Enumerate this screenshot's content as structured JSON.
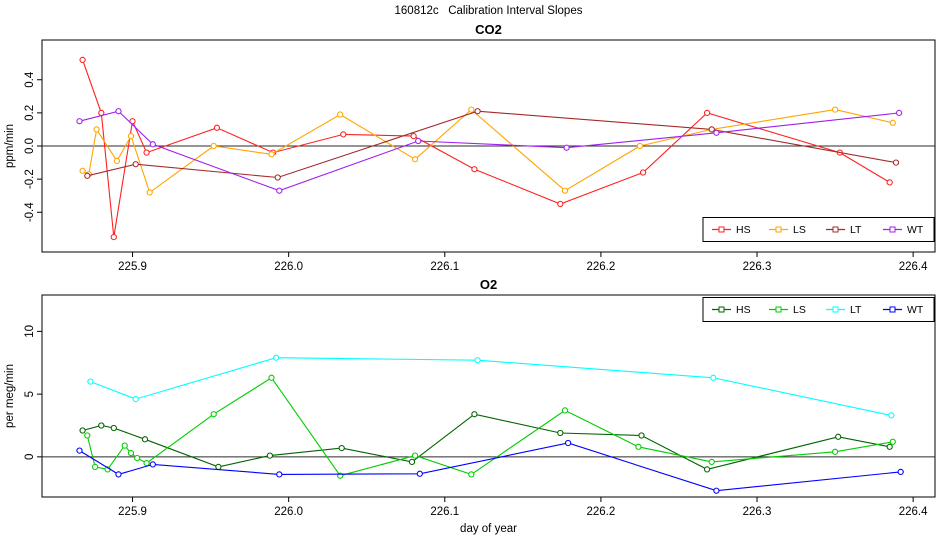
{
  "title": "160812c   Calibration Interval Slopes",
  "chart_data": [
    {
      "id": "co2",
      "type": "line",
      "title": "CO2",
      "ylabel": "ppm/min",
      "xlabel": "",
      "xlim": [
        225.842,
        226.414
      ],
      "ylim": [
        -0.64,
        0.64
      ],
      "xticks": [
        225.9,
        226.0,
        226.1,
        226.2,
        226.3,
        226.4
      ],
      "xtick_labels": [
        "225.9",
        "226.0",
        "226.1",
        "226.2",
        "226.3",
        "226.4"
      ],
      "yticks": [
        -0.4,
        -0.2,
        0.0,
        0.2,
        0.4
      ],
      "ytick_labels": [
        "-0.4",
        "-0.2",
        "0.0",
        "0.2",
        "0.4"
      ],
      "zero_line": true,
      "grid": false,
      "marker": "open-circle",
      "legend_position": "bottom-right",
      "series": [
        {
          "name": "HS",
          "color": "#ff2020",
          "x": [
            225.868,
            225.88,
            225.888,
            225.9,
            225.909,
            225.954,
            225.99,
            226.035,
            226.08,
            226.119,
            226.174,
            226.227,
            226.268,
            226.353,
            226.385
          ],
          "y": [
            0.52,
            0.2,
            -0.55,
            0.15,
            -0.04,
            0.11,
            -0.04,
            0.07,
            0.06,
            -0.14,
            -0.35,
            -0.16,
            0.2,
            -0.04,
            -0.22
          ]
        },
        {
          "name": "LS",
          "color": "#ffa500",
          "x": [
            225.868,
            225.872,
            225.877,
            225.89,
            225.899,
            225.911,
            225.952,
            225.989,
            226.033,
            226.081,
            226.117,
            226.177,
            226.225,
            226.271,
            226.35,
            226.387
          ],
          "y": [
            -0.15,
            -0.17,
            0.1,
            -0.09,
            0.06,
            -0.28,
            0.0,
            -0.05,
            0.19,
            -0.08,
            0.22,
            -0.27,
            0.0,
            0.1,
            0.22,
            0.14
          ]
        },
        {
          "name": "LT",
          "color": "#a52a2a",
          "x": [
            225.871,
            225.902,
            225.993,
            226.121,
            226.271,
            226.389
          ],
          "y": [
            -0.18,
            -0.11,
            -0.19,
            0.21,
            0.1,
            -0.1
          ]
        },
        {
          "name": "WT",
          "color": "#a020f0",
          "x": [
            225.866,
            225.891,
            225.913,
            225.994,
            226.083,
            226.178,
            226.274,
            226.391
          ],
          "y": [
            0.15,
            0.21,
            0.01,
            -0.27,
            0.03,
            -0.01,
            0.08,
            0.2
          ]
        }
      ]
    },
    {
      "id": "o2",
      "type": "line",
      "title": "O2",
      "ylabel": "per meg/min",
      "xlabel": "day of year",
      "xlim": [
        225.842,
        226.414
      ],
      "ylim": [
        -3.2,
        12.9
      ],
      "xticks": [
        225.9,
        226.0,
        226.1,
        226.2,
        226.3,
        226.4
      ],
      "xtick_labels": [
        "225.9",
        "226.0",
        "226.1",
        "226.2",
        "226.3",
        "226.4"
      ],
      "yticks": [
        0,
        5,
        10
      ],
      "ytick_labels": [
        "0",
        "5",
        "10"
      ],
      "zero_line": true,
      "grid": false,
      "marker": "open-circle",
      "legend_position": "top-right",
      "series": [
        {
          "name": "HS",
          "color": "#006400",
          "x": [
            225.868,
            225.88,
            225.888,
            225.908,
            225.955,
            225.988,
            226.034,
            226.079,
            226.119,
            226.174,
            226.226,
            226.268,
            226.352,
            226.385
          ],
          "y": [
            2.1,
            2.5,
            2.3,
            1.4,
            -0.8,
            0.1,
            0.7,
            -0.4,
            3.4,
            1.9,
            1.7,
            -1.0,
            1.6,
            0.8
          ]
        },
        {
          "name": "LS",
          "color": "#00cd00",
          "x": [
            225.871,
            225.876,
            225.884,
            225.895,
            225.899,
            225.903,
            225.909,
            225.952,
            225.989,
            226.033,
            226.081,
            226.117,
            226.177,
            226.224,
            226.271,
            226.35,
            226.387
          ],
          "y": [
            1.7,
            -0.8,
            -1.0,
            0.9,
            0.3,
            -0.1,
            -0.5,
            3.4,
            6.3,
            -1.5,
            0.1,
            -1.4,
            3.7,
            0.8,
            -0.4,
            0.4,
            1.2
          ]
        },
        {
          "name": "LT",
          "color": "#00ffff",
          "x": [
            225.873,
            225.902,
            225.992,
            226.121,
            226.272,
            226.386
          ],
          "y": [
            6.0,
            4.6,
            7.9,
            7.7,
            6.3,
            3.3
          ]
        },
        {
          "name": "WT",
          "color": "#0000ff",
          "x": [
            225.866,
            225.891,
            225.913,
            225.994,
            226.084,
            226.179,
            226.274,
            226.392
          ],
          "y": [
            0.5,
            -1.4,
            -0.6,
            -1.4,
            -1.35,
            1.1,
            -2.7,
            -1.2
          ]
        }
      ]
    }
  ]
}
